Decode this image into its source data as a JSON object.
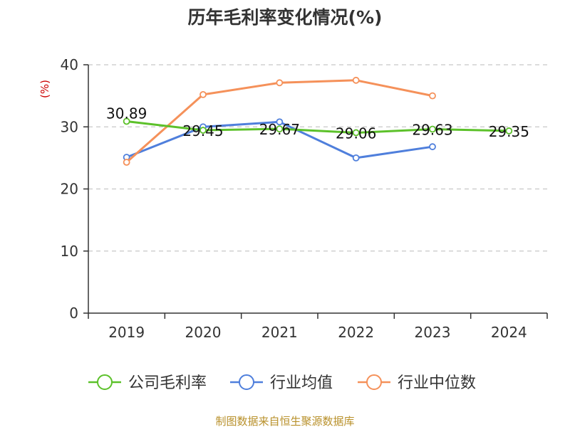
{
  "chart_data": {
    "type": "line",
    "title": "历年毛利率变化情况(%)",
    "unit_label": "(%)",
    "categories": [
      "2019",
      "2020",
      "2021",
      "2022",
      "2023",
      "2024"
    ],
    "ylim": [
      0,
      40
    ],
    "yticks": [
      0,
      10,
      20,
      30,
      40
    ],
    "grid": "horizontal-dashed",
    "legend_position": "bottom",
    "series": [
      {
        "name": "公司毛利率",
        "color": "#5cc12a",
        "values": [
          30.89,
          29.45,
          29.67,
          29.06,
          29.63,
          29.35
        ],
        "labels": [
          "30.89",
          "29.45",
          "29.67",
          "29.06",
          "29.63",
          "29.35"
        ]
      },
      {
        "name": "行业均值",
        "color": "#4f7fdc",
        "values": [
          25.1,
          30.0,
          30.8,
          25.0,
          26.8,
          null
        ]
      },
      {
        "name": "行业中位数",
        "color": "#f5915a",
        "values": [
          24.3,
          35.2,
          37.1,
          37.5,
          35.0,
          null
        ]
      }
    ]
  },
  "source": "制图数据来自恒生聚源数据库"
}
